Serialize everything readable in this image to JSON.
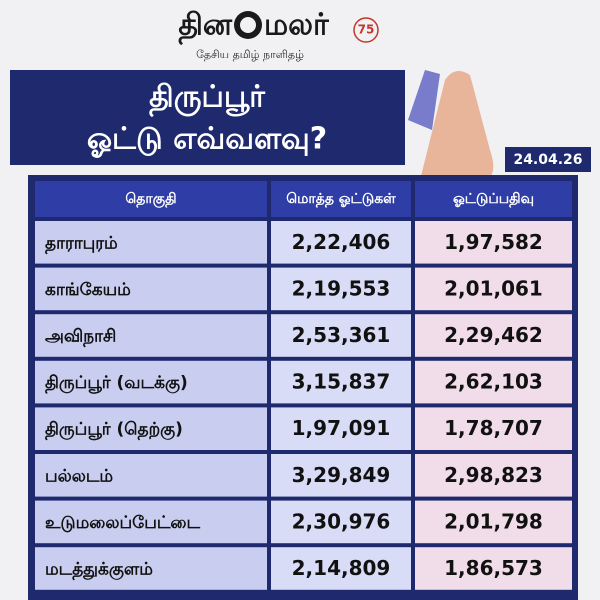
{
  "header": {
    "logo_left": "தின",
    "logo_right": "மலர்",
    "tagline": "தேசிய தமிழ் நாளிதழ்",
    "badge": "75"
  },
  "title": {
    "line1": "திருப்பூர்",
    "line2": "ஓட்டு எவ்வளவு?"
  },
  "date": "24.04.26",
  "table": {
    "columns": [
      "தொகுதி",
      "மொத்த ஓட்டுகள்",
      "ஓட்டுப்பதிவு"
    ],
    "rows": [
      [
        "தாராபுரம்",
        "2,22,406",
        "1,97,582"
      ],
      [
        "காங்கேயம்",
        "2,19,553",
        "2,01,061"
      ],
      [
        "அவிநாசி",
        "2,53,361",
        "2,29,462"
      ],
      [
        "திருப்பூர் (வடக்கு)",
        "3,15,837",
        "2,62,103"
      ],
      [
        "திருப்பூர் (தெற்கு)",
        "1,97,091",
        "1,78,707"
      ],
      [
        "பல்லடம்",
        "3,29,849",
        "2,98,823"
      ],
      [
        "உடுமலைப்பேட்டை",
        "2,30,976",
        "2,01,798"
      ],
      [
        "மடத்துக்குளம்",
        "2,14,809",
        "1,86,573"
      ]
    ]
  }
}
